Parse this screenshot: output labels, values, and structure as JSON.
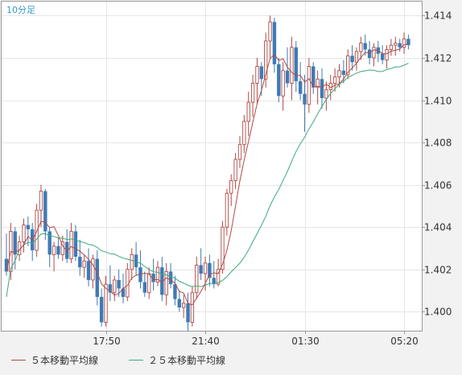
{
  "chart_data": {
    "type": "candlestick",
    "period_label": "10分足",
    "ylim": [
      1.3991,
      1.4147
    ],
    "yticks": [
      "1.414",
      "1.412",
      "1.410",
      "1.408",
      "1.406",
      "1.404",
      "1.402",
      "1.400"
    ],
    "xticks": [
      {
        "label": "17:50",
        "index": 23
      },
      {
        "label": "21:40",
        "index": 46
      },
      {
        "label": "01:30",
        "index": 69
      },
      {
        "label": "05:20",
        "index": 92
      }
    ],
    "colors": {
      "up": "#b14a45",
      "down": "#3f7ab5",
      "ma5": "#b14a45",
      "ma25": "#3ea87a",
      "grid": "#e6e6e6",
      "axis": "#999999"
    },
    "legend": [
      {
        "label": "５本移動平均線",
        "color": "#b14a45"
      },
      {
        "label": "２５本移動平均線",
        "color": "#3ea87a"
      }
    ],
    "ohlc": [
      [
        1.4025,
        1.4037,
        1.4017,
        1.4019
      ],
      [
        1.4019,
        1.4042,
        1.4015,
        1.4038
      ],
      [
        1.4038,
        1.404,
        1.402,
        1.4027
      ],
      [
        1.4027,
        1.4036,
        1.4024,
        1.4033
      ],
      [
        1.4033,
        1.4044,
        1.4028,
        1.4041
      ],
      [
        1.4041,
        1.4045,
        1.4031,
        1.4039
      ],
      [
        1.4039,
        1.4042,
        1.4024,
        1.4029
      ],
      [
        1.4029,
        1.4051,
        1.4026,
        1.4048
      ],
      [
        1.4048,
        1.406,
        1.404,
        1.4057
      ],
      [
        1.4057,
        1.4058,
        1.4034,
        1.4038
      ],
      [
        1.4038,
        1.404,
        1.4021,
        1.4027
      ],
      [
        1.4027,
        1.4033,
        1.4019,
        1.4031
      ],
      [
        1.4031,
        1.4035,
        1.4025,
        1.4027
      ],
      [
        1.4027,
        1.4036,
        1.4024,
        1.4033
      ],
      [
        1.4033,
        1.4039,
        1.4023,
        1.4025
      ],
      [
        1.4025,
        1.4042,
        1.4023,
        1.4038
      ],
      [
        1.4038,
        1.4041,
        1.4024,
        1.4026
      ],
      [
        1.4026,
        1.4034,
        1.4017,
        1.4021
      ],
      [
        1.4021,
        1.4027,
        1.4016,
        1.4024
      ],
      [
        1.4024,
        1.403,
        1.4012,
        1.4015
      ],
      [
        1.4015,
        1.4027,
        1.4011,
        1.4025
      ],
      [
        1.4025,
        1.4029,
        1.4003,
        1.4007
      ],
      [
        1.4007,
        1.4011,
        1.3993,
        1.3995
      ],
      [
        1.3995,
        1.4017,
        1.3993,
        1.4013
      ],
      [
        1.4013,
        1.4022,
        1.4005,
        1.4009
      ],
      [
        1.4009,
        1.4017,
        1.4005,
        1.4015
      ],
      [
        1.4015,
        1.402,
        1.4007,
        1.4011
      ],
      [
        1.4011,
        1.4018,
        1.4004,
        1.4007
      ],
      [
        1.4007,
        1.4023,
        1.4005,
        1.402
      ],
      [
        1.402,
        1.403,
        1.4015,
        1.4027
      ],
      [
        1.4027,
        1.4033,
        1.4017,
        1.4021
      ],
      [
        1.4021,
        1.4029,
        1.4011,
        1.4014
      ],
      [
        1.4014,
        1.4019,
        1.4007,
        1.4009
      ],
      [
        1.4009,
        1.4021,
        1.4006,
        1.4018
      ],
      [
        1.4018,
        1.4025,
        1.401,
        1.4014
      ],
      [
        1.4014,
        1.4024,
        1.4012,
        1.4021
      ],
      [
        1.4021,
        1.4026,
        1.4005,
        1.4008
      ],
      [
        1.4008,
        1.4023,
        1.4003,
        1.4019
      ],
      [
        1.4019,
        1.4023,
        1.4011,
        1.4013
      ],
      [
        1.4013,
        1.4017,
        1.4003,
        1.4006
      ],
      [
        1.4006,
        1.401,
        1.4,
        1.4002
      ],
      [
        1.4002,
        1.4008,
        1.3997,
        1.4004
      ],
      [
        1.4004,
        1.4009,
        1.3991,
        1.3995
      ],
      [
        1.3995,
        1.4012,
        1.3993,
        1.4009
      ],
      [
        1.4009,
        1.4026,
        1.4006,
        1.4022
      ],
      [
        1.4022,
        1.403,
        1.4015,
        1.4018
      ],
      [
        1.4018,
        1.4026,
        1.401,
        1.4023
      ],
      [
        1.4023,
        1.4027,
        1.4012,
        1.4016
      ],
      [
        1.4016,
        1.4024,
        1.4011,
        1.4013
      ],
      [
        1.4013,
        1.4025,
        1.4012,
        1.402
      ],
      [
        1.402,
        1.4043,
        1.4018,
        1.404
      ],
      [
        1.404,
        1.4058,
        1.4036,
        1.4056
      ],
      [
        1.4056,
        1.4065,
        1.405,
        1.4062
      ],
      [
        1.4062,
        1.4075,
        1.4058,
        1.4072
      ],
      [
        1.4072,
        1.4083,
        1.4068,
        1.4079
      ],
      [
        1.4079,
        1.4093,
        1.4075,
        1.409
      ],
      [
        1.409,
        1.4104,
        1.4083,
        1.4099
      ],
      [
        1.4099,
        1.4112,
        1.4092,
        1.4108
      ],
      [
        1.4108,
        1.412,
        1.4098,
        1.4116
      ],
      [
        1.4116,
        1.4118,
        1.4102,
        1.411
      ],
      [
        1.411,
        1.4132,
        1.4106,
        1.4128
      ],
      [
        1.4128,
        1.414,
        1.412,
        1.4137
      ],
      [
        1.4137,
        1.4139,
        1.4113,
        1.4117
      ],
      [
        1.4117,
        1.412,
        1.4099,
        1.4102
      ],
      [
        1.4102,
        1.4118,
        1.4095,
        1.4114
      ],
      [
        1.4114,
        1.4125,
        1.4106,
        1.4108
      ],
      [
        1.4108,
        1.413,
        1.41,
        1.4125
      ],
      [
        1.4125,
        1.4128,
        1.4104,
        1.4109
      ],
      [
        1.4109,
        1.4118,
        1.41,
        1.4103
      ],
      [
        1.4103,
        1.4112,
        1.4085,
        1.4098
      ],
      [
        1.4098,
        1.412,
        1.4094,
        1.4116
      ],
      [
        1.4116,
        1.4118,
        1.4103,
        1.4106
      ],
      [
        1.4106,
        1.4114,
        1.4098,
        1.411
      ],
      [
        1.411,
        1.4115,
        1.4096,
        1.4101
      ],
      [
        1.4101,
        1.4109,
        1.4095,
        1.4105
      ],
      [
        1.4105,
        1.4112,
        1.41,
        1.4108
      ],
      [
        1.4108,
        1.4115,
        1.4104,
        1.4111
      ],
      [
        1.4111,
        1.4117,
        1.4106,
        1.4114
      ],
      [
        1.4114,
        1.4119,
        1.4108,
        1.4112
      ],
      [
        1.4112,
        1.4124,
        1.411,
        1.4121
      ],
      [
        1.4121,
        1.4126,
        1.4114,
        1.4118
      ],
      [
        1.4118,
        1.4125,
        1.4114,
        1.4123
      ],
      [
        1.4123,
        1.413,
        1.4119,
        1.4127
      ],
      [
        1.4127,
        1.4131,
        1.4121,
        1.4124
      ],
      [
        1.4124,
        1.4128,
        1.4117,
        1.412
      ],
      [
        1.412,
        1.4127,
        1.4116,
        1.4125
      ],
      [
        1.4125,
        1.4128,
        1.4118,
        1.4122
      ],
      [
        1.4122,
        1.4126,
        1.4117,
        1.4119
      ],
      [
        1.4119,
        1.4126,
        1.4115,
        1.4124
      ],
      [
        1.4124,
        1.4129,
        1.4121,
        1.4126
      ],
      [
        1.4126,
        1.413,
        1.4121,
        1.4127
      ],
      [
        1.4127,
        1.4129,
        1.4123,
        1.4125
      ],
      [
        1.4125,
        1.4132,
        1.4122,
        1.4129
      ],
      [
        1.4129,
        1.4131,
        1.4124,
        1.4126
      ]
    ]
  }
}
